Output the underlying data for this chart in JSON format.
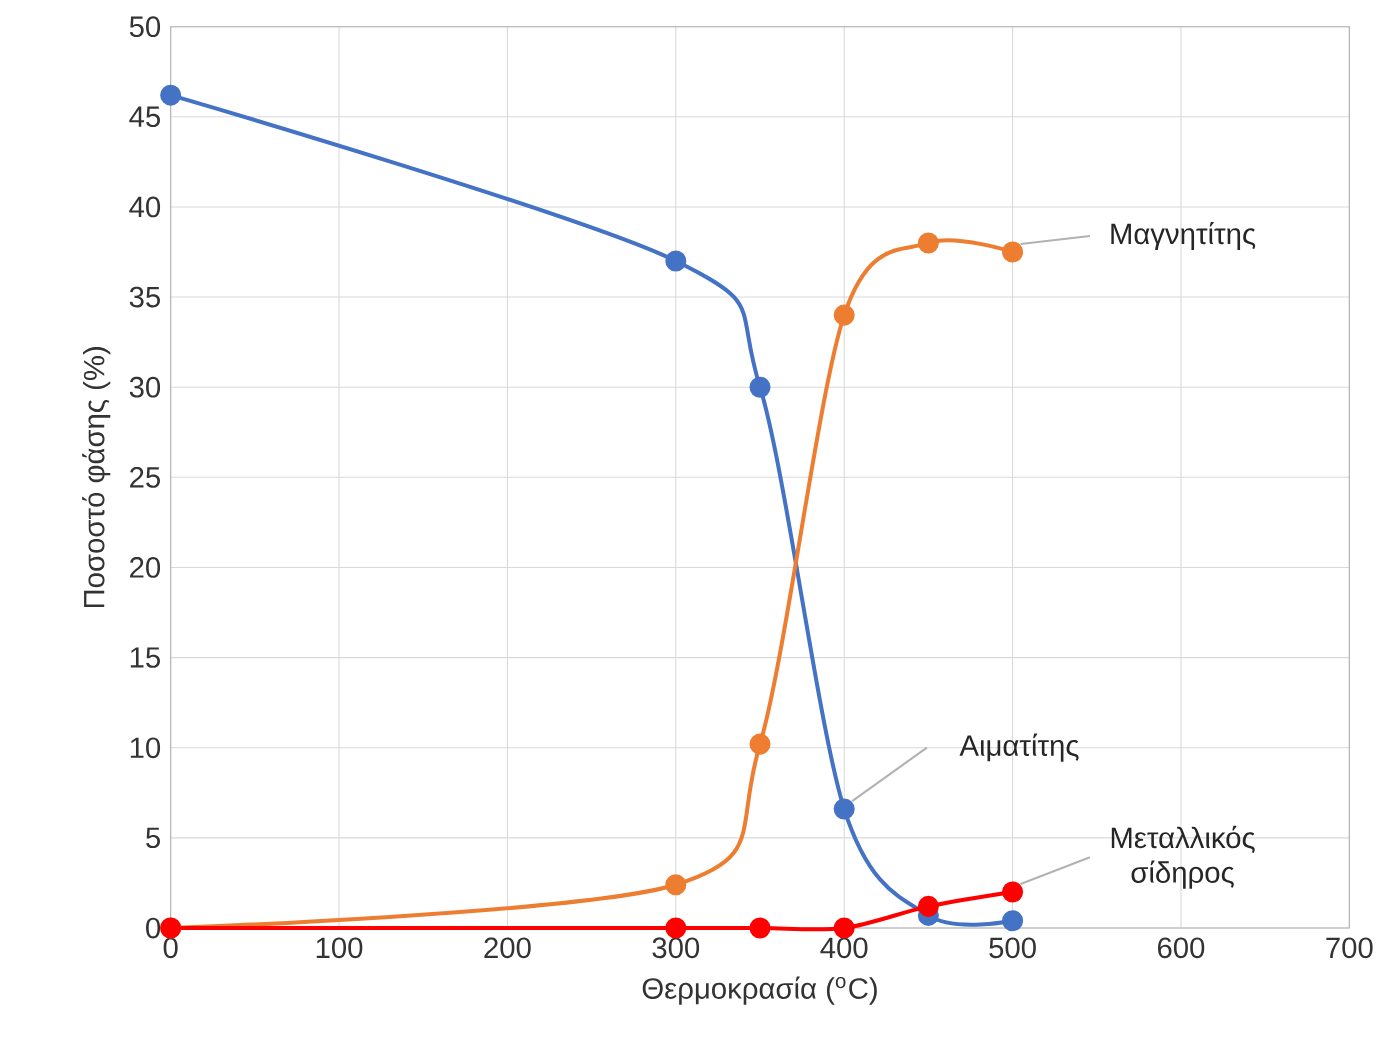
{
  "chart_data": {
    "type": "line",
    "xlabel": "Θερμοκρασία ($^{o}$C)",
    "ylabel": "Ποσοστό φάσης (%)",
    "x": [
      0,
      300,
      350,
      400,
      450,
      500
    ],
    "series": [
      {
        "name": "Αιματίτης",
        "color": "#4472c4",
        "values": [
          46.2,
          37,
          30,
          6.6,
          0.7,
          0.4
        ]
      },
      {
        "name": "Μαγνητίτης",
        "color": "#ed7d31",
        "values": [
          0,
          2.4,
          10.2,
          34,
          38,
          37.5
        ]
      },
      {
        "name": "Μεταλλικός σίδηρος",
        "color": "#ff0000",
        "values": [
          0,
          0,
          0,
          0,
          1.2,
          2
        ]
      }
    ],
    "xlim": [
      0,
      700
    ],
    "xticks": [
      0,
      100,
      200,
      300,
      400,
      500,
      600,
      700
    ],
    "ylim": [
      0,
      50
    ],
    "yticks": [
      0,
      5,
      10,
      15,
      20,
      25,
      30,
      35,
      40,
      45,
      50
    ],
    "grid": true,
    "legend": false,
    "marker": "circle",
    "line_style": "solid"
  }
}
